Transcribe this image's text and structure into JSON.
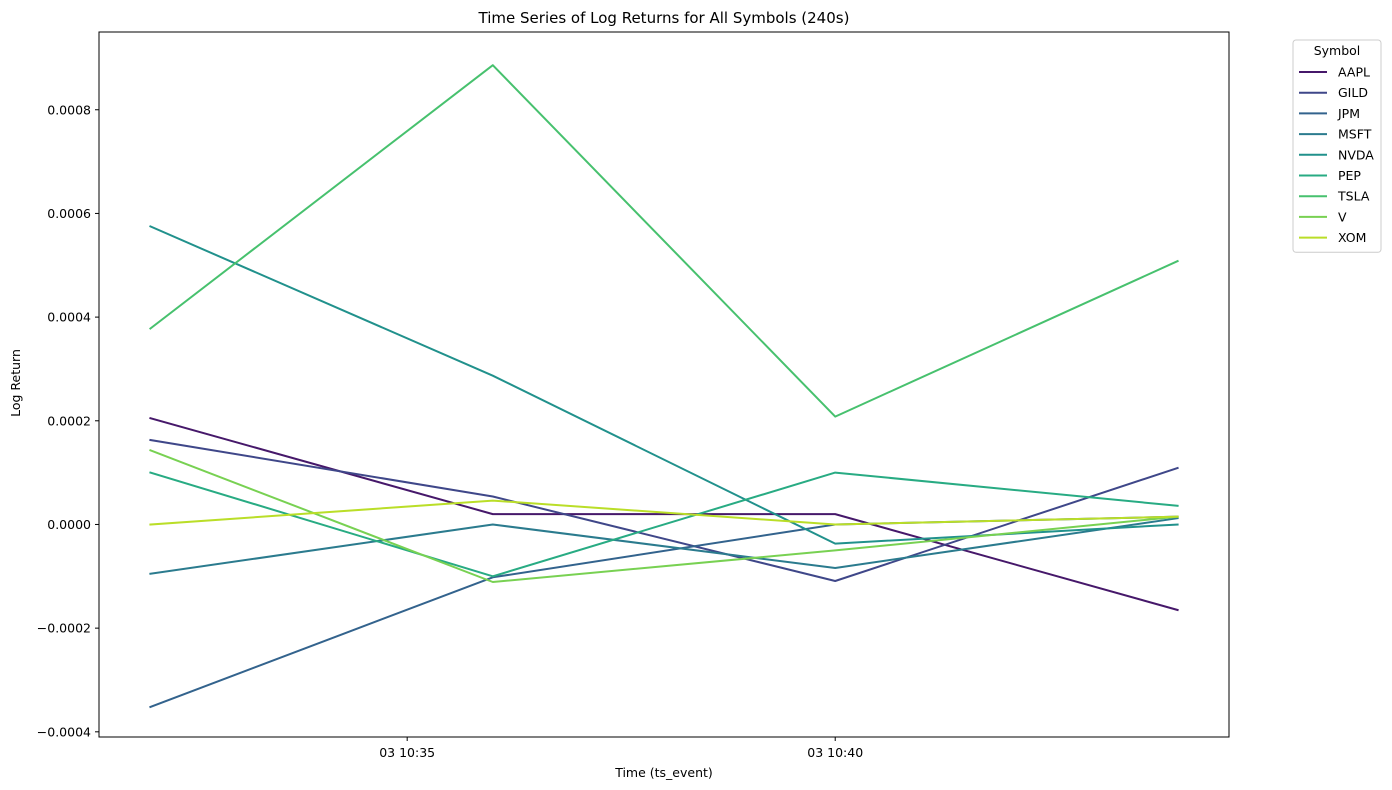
{
  "chart_data": {
    "type": "line",
    "title": "Time Series of Log Returns for All Symbols (240s)",
    "xlabel": "Time (ts_event)",
    "ylabel": "Log Return",
    "x": [
      "03 10:32",
      "03 10:36",
      "03 10:40",
      "03 10:44"
    ],
    "x_minutes": [
      32,
      36,
      40,
      44
    ],
    "xlim_minutes": [
      31.4,
      44.6
    ],
    "xticks": [
      {
        "minute": 35,
        "label": "03 10:35"
      },
      {
        "minute": 40,
        "label": "03 10:40"
      }
    ],
    "ylim": [
      -0.00041,
      0.00095
    ],
    "yticks": [
      {
        "value": -0.0004,
        "label": "−0.0004"
      },
      {
        "value": -0.0002,
        "label": "−0.0002"
      },
      {
        "value": 0.0,
        "label": "0.0000"
      },
      {
        "value": 0.0002,
        "label": "0.0002"
      },
      {
        "value": 0.0004,
        "label": "0.0004"
      },
      {
        "value": 0.0006,
        "label": "0.0006"
      },
      {
        "value": 0.0008,
        "label": "0.0008"
      }
    ],
    "grid": false,
    "legend": {
      "title": "Symbol",
      "placement": "outside-top-right"
    },
    "series": [
      {
        "name": "AAPL",
        "color": "#46186a",
        "values": [
          0.000205,
          2e-05,
          2e-05,
          -0.000165
        ]
      },
      {
        "name": "GILD",
        "color": "#3f4789",
        "values": [
          0.000163,
          5.4e-05,
          -0.000109,
          0.000109
        ]
      },
      {
        "name": "JPM",
        "color": "#33638d",
        "values": [
          -0.000352,
          -0.000102,
          0.0,
          1.5e-05
        ]
      },
      {
        "name": "MSFT",
        "color": "#2b7b8e",
        "values": [
          -9.5e-05,
          0.0,
          -8.4e-05,
          1.2e-05
        ]
      },
      {
        "name": "NVDA",
        "color": "#21918c",
        "values": [
          0.000575,
          0.000287,
          -3.7e-05,
          0.0
        ]
      },
      {
        "name": "PEP",
        "color": "#28ab83",
        "values": [
          0.0001,
          -0.0001,
          0.0001,
          3.6e-05
        ]
      },
      {
        "name": "TSLA",
        "color": "#47c16e",
        "values": [
          0.000378,
          0.000886,
          0.000208,
          0.000508
        ]
      },
      {
        "name": "V",
        "color": "#78d152",
        "values": [
          0.000143,
          -0.000111,
          -5e-05,
          1.5e-05
        ]
      },
      {
        "name": "XOM",
        "color": "#bade28",
        "values": [
          0.0,
          4.6e-05,
          0.0,
          1.5e-05
        ]
      }
    ]
  }
}
